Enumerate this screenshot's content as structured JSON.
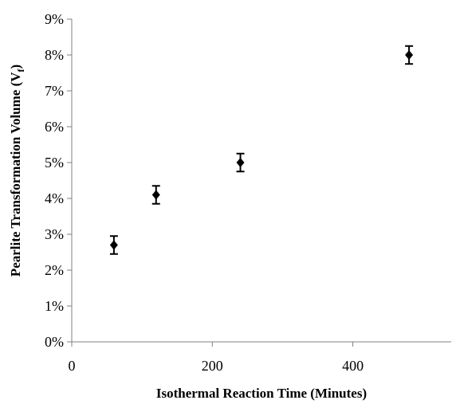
{
  "chart_data": {
    "type": "scatter",
    "title": "",
    "xlabel": "Isothermal Reaction Time (Minutes)",
    "ylabel_main": "Pearlite Transformation Volume (V",
    "ylabel_sub": "f",
    "ylabel_close": ")",
    "xlim": [
      0,
      540
    ],
    "ylim": [
      0,
      0.09
    ],
    "x_ticks": [
      {
        "value": 0,
        "label": "0"
      },
      {
        "value": 200,
        "label": "200"
      },
      {
        "value": 400,
        "label": "400"
      }
    ],
    "y_ticks": [
      {
        "value": 0.0,
        "label": "0%"
      },
      {
        "value": 0.01,
        "label": "1%"
      },
      {
        "value": 0.02,
        "label": "2%"
      },
      {
        "value": 0.03,
        "label": "3%"
      },
      {
        "value": 0.04,
        "label": "4%"
      },
      {
        "value": 0.05,
        "label": "5%"
      },
      {
        "value": 0.06,
        "label": "6%"
      },
      {
        "value": 0.07,
        "label": "7%"
      },
      {
        "value": 0.08,
        "label": "8%"
      },
      {
        "value": 0.09,
        "label": "9%"
      }
    ],
    "grid": false,
    "legend": "none",
    "marker_color": "#000000",
    "points": [
      {
        "x": 60,
        "y": 0.027,
        "err": 0.0025
      },
      {
        "x": 120,
        "y": 0.041,
        "err": 0.0025
      },
      {
        "x": 240,
        "y": 0.05,
        "err": 0.0025
      },
      {
        "x": 480,
        "y": 0.08,
        "err": 0.0025
      }
    ]
  }
}
